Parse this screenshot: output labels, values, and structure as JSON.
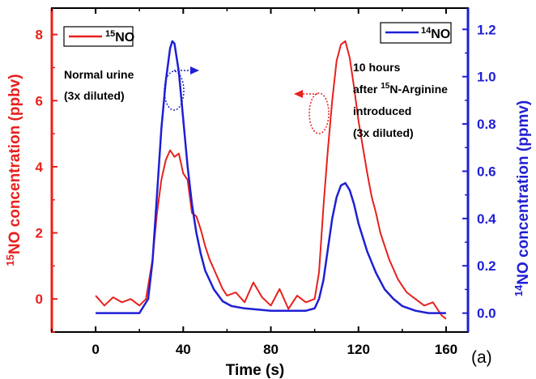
{
  "colors": {
    "red": "#e8201c",
    "blue": "#1f1fd4",
    "black": "#000000"
  },
  "texts": {
    "legend_red_sup": "15",
    "legend_red_main": "NO",
    "legend_blue_sup": "14",
    "legend_blue_main": "NO",
    "annot_left_line1": "Normal urine",
    "annot_left_line2": "(3x diluted)",
    "annot_right_line1": "10 hours",
    "annot_right_line2_pre": "after ",
    "annot_right_line2_sup": "15",
    "annot_right_line2_post": "N-Arginine",
    "annot_right_line3": "introduced",
    "annot_right_line4": "(3x diluted)",
    "panel_label": "(a)"
  },
  "chart_data": {
    "type": "line",
    "title": "",
    "xlabel": "Time (s)",
    "ylabel_left": {
      "sup": "15",
      "main": "NO concentration (ppbv)"
    },
    "ylabel_right": {
      "sup": "14",
      "main": "NO concentration (ppmv)"
    },
    "xlim": [
      -20,
      170
    ],
    "ylim_left": [
      -1,
      8.8
    ],
    "ylim_right": [
      -0.08,
      1.29
    ],
    "x_ticks": [
      0,
      40,
      80,
      120,
      160
    ],
    "y_left_ticks": [
      0,
      2,
      4,
      6,
      8
    ],
    "y_right_ticks": [
      0.0,
      0.2,
      0.4,
      0.6,
      0.8,
      1.0,
      1.2
    ],
    "y_right_tick_labels": [
      "0.0",
      "0.2",
      "0.4",
      "0.6",
      "0.8",
      "1.0",
      "1.2"
    ],
    "series": [
      {
        "name": "15NO",
        "axis": "left",
        "color": "#e8201c",
        "x": [
          0,
          4,
          8,
          12,
          16,
          20,
          23,
          26,
          28,
          30,
          32,
          34,
          36,
          38,
          40,
          42,
          44,
          46,
          48,
          50,
          52,
          54,
          56,
          58,
          60,
          64,
          68,
          72,
          76,
          80,
          84,
          88,
          92,
          96,
          100,
          102,
          104,
          106,
          108,
          110,
          112,
          114,
          116,
          118,
          120,
          122,
          124,
          126,
          128,
          130,
          132,
          134,
          136,
          138,
          140,
          142,
          146,
          150,
          154,
          158,
          160
        ],
        "y": [
          0.1,
          -0.2,
          0.05,
          -0.1,
          0.0,
          -0.2,
          0.0,
          1.2,
          2.6,
          3.6,
          4.2,
          4.5,
          4.3,
          4.4,
          3.8,
          3.6,
          2.6,
          2.5,
          2.1,
          1.6,
          1.2,
          0.9,
          0.6,
          0.3,
          0.1,
          0.2,
          -0.1,
          0.5,
          0.05,
          -0.2,
          0.3,
          -0.3,
          0.1,
          -0.1,
          0.0,
          0.8,
          2.8,
          4.5,
          6.0,
          7.2,
          7.7,
          7.8,
          7.3,
          6.4,
          5.4,
          4.6,
          3.8,
          3.1,
          2.6,
          2.0,
          1.6,
          1.2,
          0.9,
          0.6,
          0.4,
          0.2,
          0.0,
          -0.2,
          -0.1,
          -0.5,
          -0.6
        ]
      },
      {
        "name": "14NO",
        "axis": "right",
        "color": "#1f1fd4",
        "x": [
          0,
          10,
          20,
          24,
          26,
          28,
          30,
          32,
          34,
          35,
          36,
          38,
          40,
          42,
          44,
          46,
          48,
          50,
          54,
          58,
          62,
          68,
          80,
          90,
          96,
          100,
          102,
          104,
          106,
          108,
          110,
          112,
          114,
          116,
          118,
          120,
          124,
          128,
          132,
          136,
          140,
          146,
          152,
          160
        ],
        "y": [
          0.0,
          0.0,
          0.0,
          0.06,
          0.22,
          0.5,
          0.78,
          0.98,
          1.12,
          1.15,
          1.14,
          1.02,
          0.82,
          0.62,
          0.46,
          0.34,
          0.25,
          0.18,
          0.1,
          0.05,
          0.03,
          0.02,
          0.01,
          0.01,
          0.01,
          0.02,
          0.06,
          0.14,
          0.27,
          0.4,
          0.49,
          0.54,
          0.55,
          0.52,
          0.46,
          0.38,
          0.26,
          0.17,
          0.1,
          0.06,
          0.03,
          0.01,
          0.0,
          0.0
        ]
      }
    ]
  }
}
